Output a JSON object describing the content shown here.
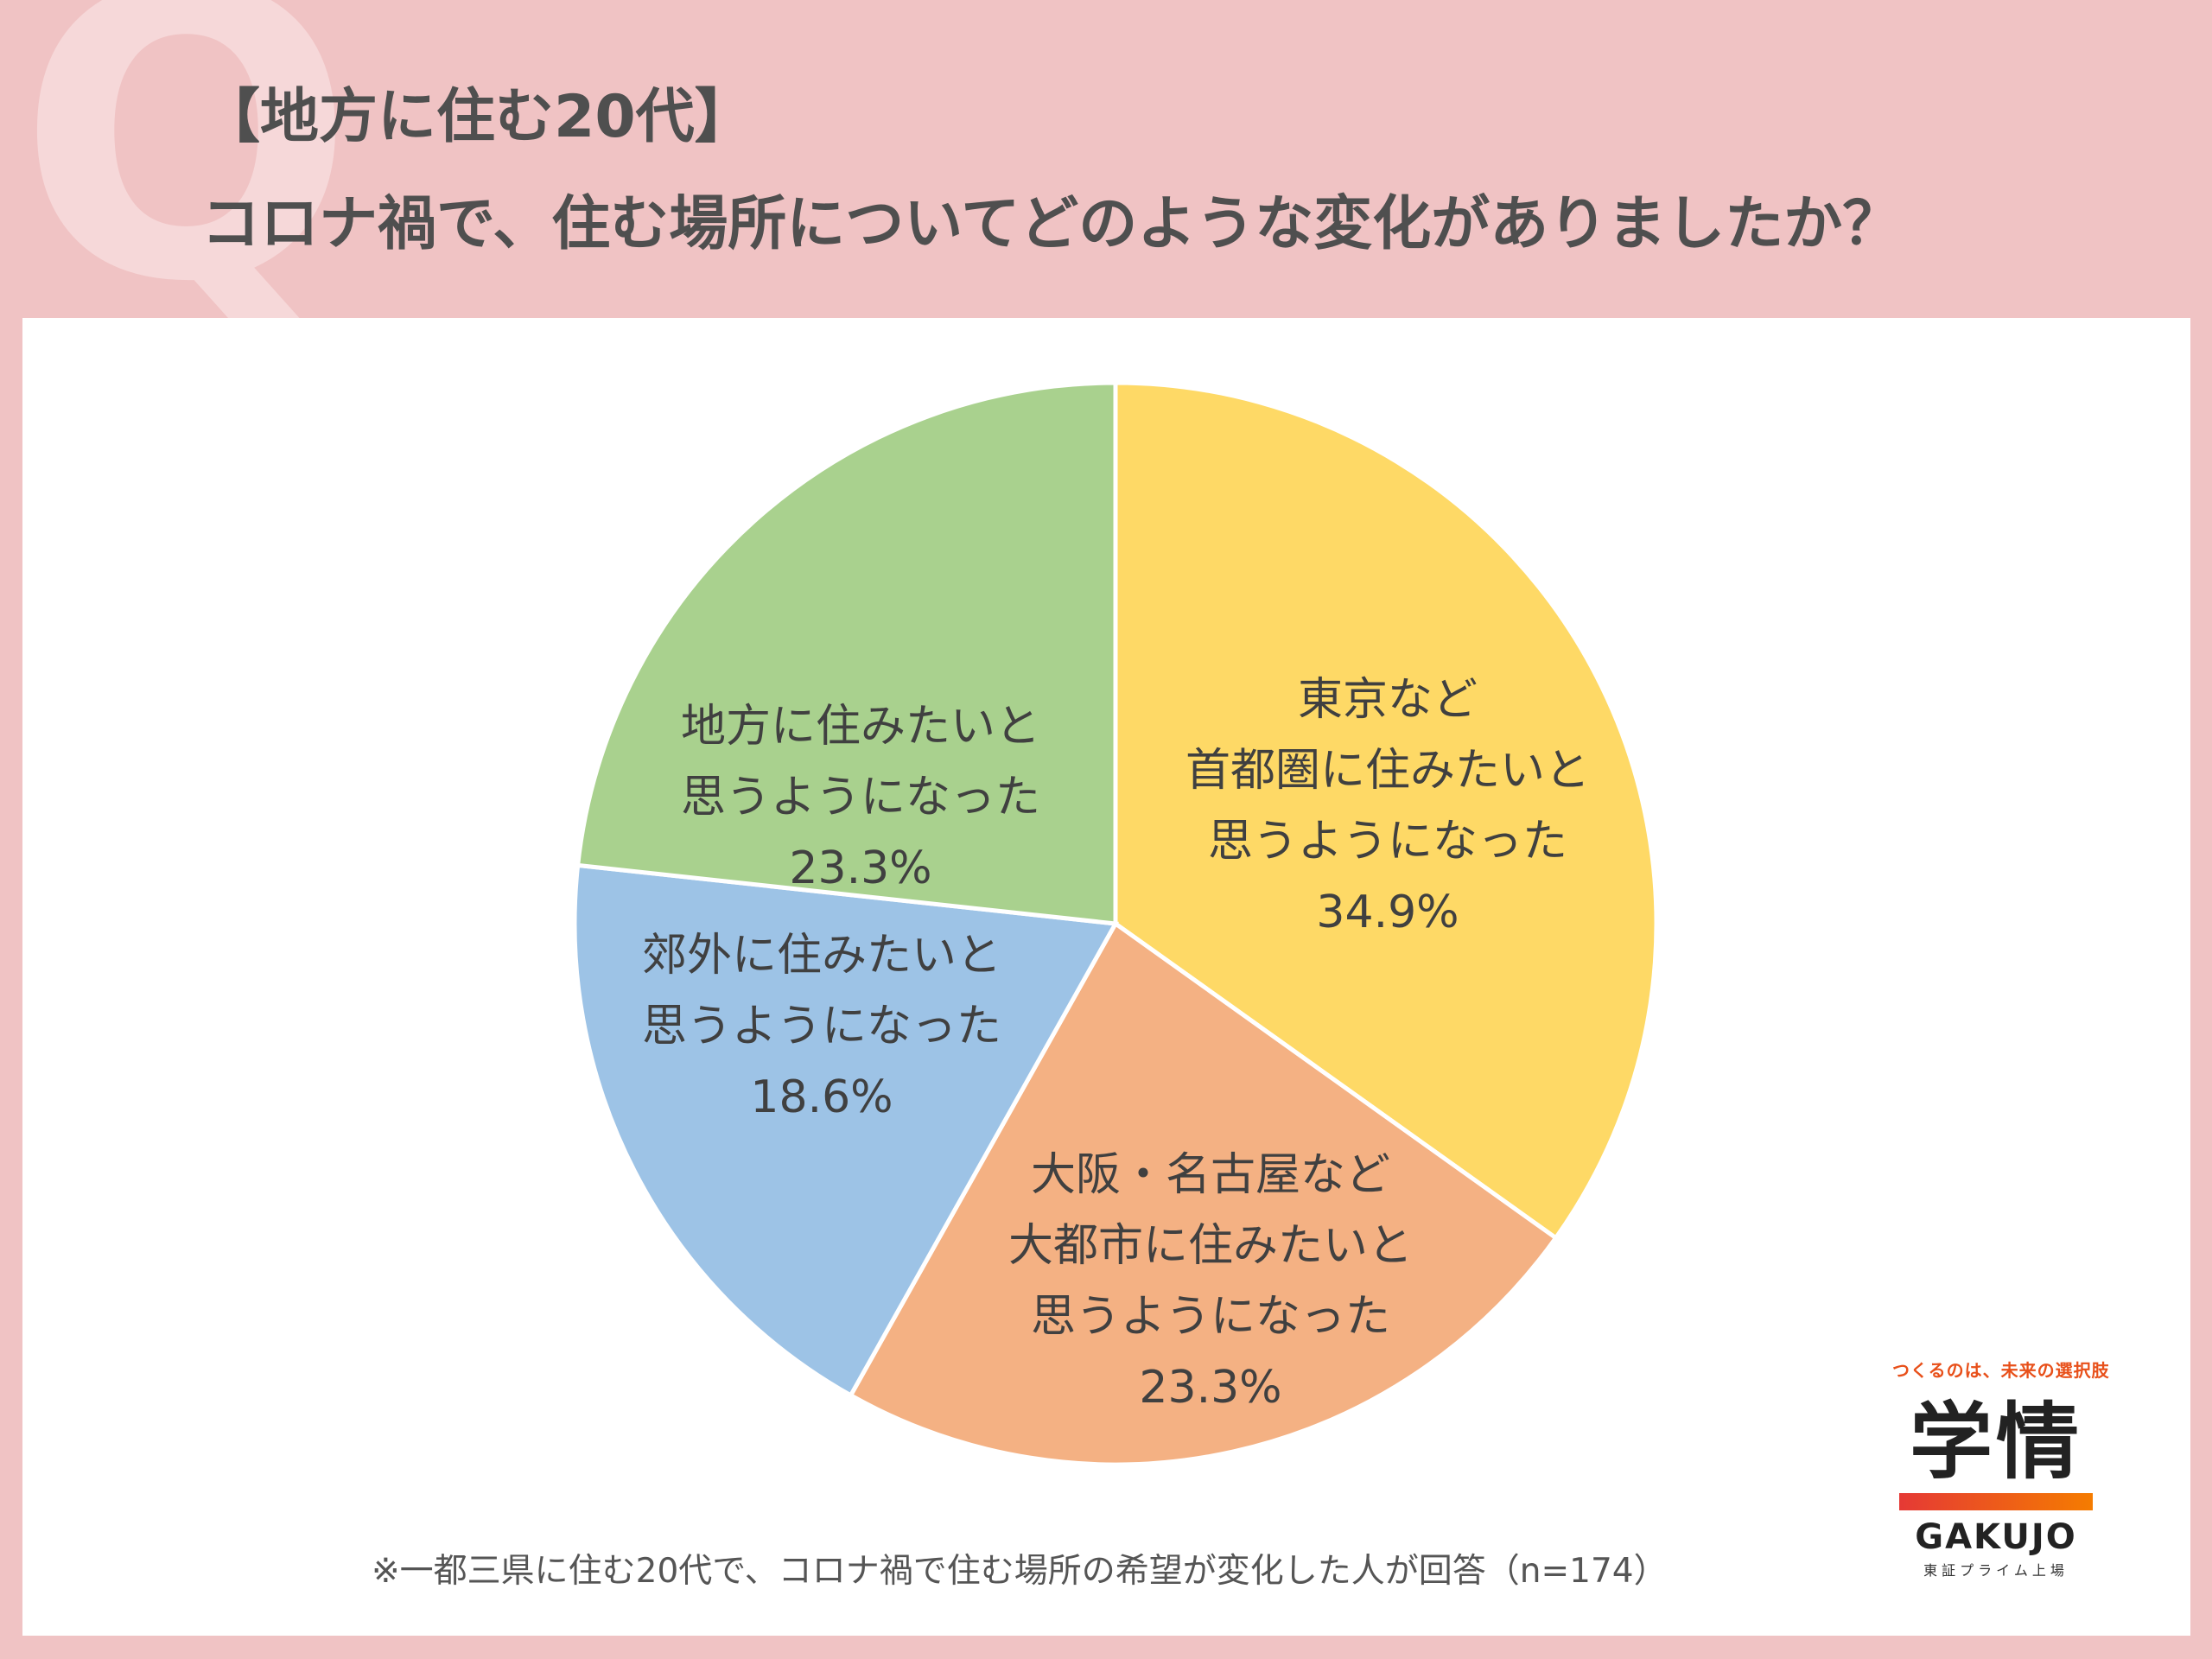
{
  "header": {
    "q_mark": "Q",
    "line1": "【地方に住む20代】",
    "line2": "コロナ禍で、住む場所についてどのような変化がありましたか？"
  },
  "chart_data": {
    "type": "pie",
    "title": "【地方に住む20代】コロナ禍で、住む場所についてどのような変化がありましたか？",
    "start_angle_deg": 0,
    "direction": "clockwise",
    "slices": [
      {
        "lines": [
          "東京など",
          "首都圏に住みたいと",
          "思うようになった"
        ],
        "value": 34.9,
        "value_label": "34.9%",
        "color": "#fed966"
      },
      {
        "lines": [
          "大阪・名古屋など",
          "大都市に住みたいと",
          "思うようになった"
        ],
        "value": 23.3,
        "value_label": "23.3%",
        "color": "#f4b183"
      },
      {
        "lines": [
          "郊外に住みたいと",
          "思うようになった"
        ],
        "value": 18.6,
        "value_label": "18.6%",
        "color": "#9dc3e6"
      },
      {
        "lines": [
          "地方に住みたいと",
          "思うようになった"
        ],
        "value": 23.3,
        "value_label": "23.3%",
        "color": "#a9d18e"
      }
    ]
  },
  "footnote": "※一都三県に住む20代で、コロナ禍で住む場所の希望が変化した人が回答（n=174）",
  "logo": {
    "tagline": "つくるのは、未来の選択肢",
    "main": "学情",
    "english": "GAKUJO",
    "sub": "東証プライム上場"
  }
}
